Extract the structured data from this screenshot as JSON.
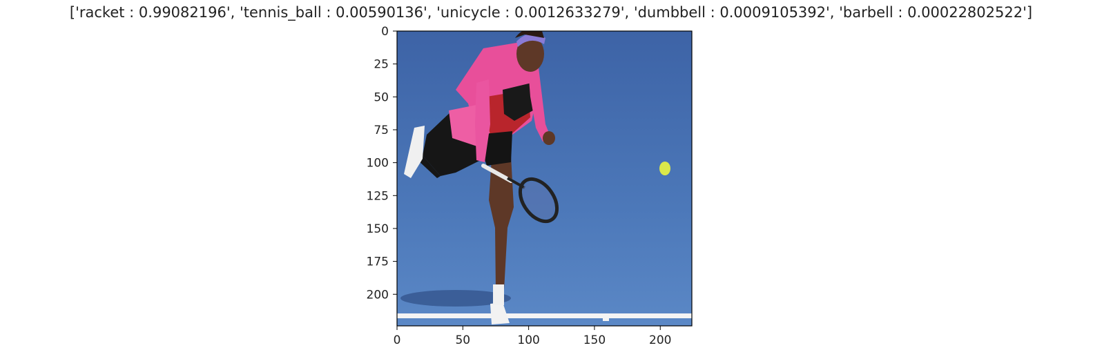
{
  "figure": {
    "title": "['racket : 0.99082196', 'tennis_ball : 0.00590136', 'unicycle : 0.0012633279', 'dumbbell : 0.0009105392', 'barbell : 0.00022802522']"
  },
  "chart_data": {
    "type": "image",
    "title": "['racket : 0.99082196', 'tennis_ball : 0.00590136', 'unicycle : 0.0012633279', 'dumbbell : 0.0009105392', 'barbell : 0.00022802522']",
    "predictions": [
      {
        "label": "racket",
        "score": 0.99082196
      },
      {
        "label": "tennis_ball",
        "score": 0.00590136
      },
      {
        "label": "unicycle",
        "score": 0.0012633279
      },
      {
        "label": "dumbbell",
        "score": 0.0009105392
      },
      {
        "label": "barbell",
        "score": 0.00022802522
      }
    ],
    "xlim": [
      0,
      224
    ],
    "ylim": [
      224,
      0
    ],
    "xticks": [
      0,
      50,
      100,
      150,
      200
    ],
    "yticks": [
      0,
      25,
      50,
      75,
      100,
      125,
      150,
      175,
      200
    ],
    "xlabel": "",
    "ylabel": "",
    "grid": false,
    "legend": false,
    "image_content": "tennis player serving on blue hard court, tennis ball in flight"
  },
  "colors": {
    "court": "#3f68ad",
    "court_light": "#5a86c4",
    "outfit_pink": "#e84f9a",
    "outfit_black": "#1a1a1a",
    "skin": "#6b4030",
    "ball": "#d9e64a",
    "line": "#ffffff"
  }
}
